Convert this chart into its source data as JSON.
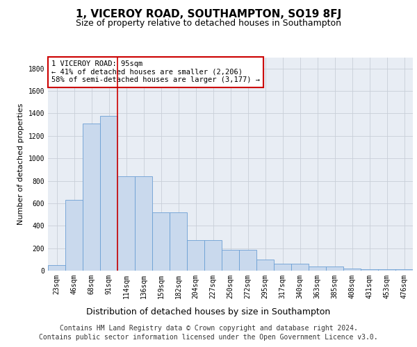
{
  "title1": "1, VICEROY ROAD, SOUTHAMPTON, SO19 8FJ",
  "title2": "Size of property relative to detached houses in Southampton",
  "xlabel": "Distribution of detached houses by size in Southampton",
  "ylabel": "Number of detached properties",
  "categories": [
    "23sqm",
    "46sqm",
    "68sqm",
    "91sqm",
    "114sqm",
    "136sqm",
    "159sqm",
    "182sqm",
    "204sqm",
    "227sqm",
    "250sqm",
    "272sqm",
    "295sqm",
    "317sqm",
    "340sqm",
    "363sqm",
    "385sqm",
    "408sqm",
    "431sqm",
    "453sqm",
    "476sqm"
  ],
  "values": [
    50,
    630,
    1310,
    1380,
    840,
    840,
    520,
    520,
    270,
    270,
    185,
    185,
    100,
    60,
    60,
    35,
    35,
    20,
    15,
    12,
    10
  ],
  "bar_color": "#c9d9ed",
  "bar_edge_color": "#6b9fd4",
  "vline_pos": 3.5,
  "vline_color": "#cc0000",
  "annotation_text": "1 VICEROY ROAD: 95sqm\n← 41% of detached houses are smaller (2,206)\n58% of semi-detached houses are larger (3,177) →",
  "annotation_box_color": "white",
  "annotation_box_edge_color": "#cc0000",
  "ylim": [
    0,
    1900
  ],
  "yticks": [
    0,
    200,
    400,
    600,
    800,
    1000,
    1200,
    1400,
    1600,
    1800
  ],
  "grid_color": "#c8cfd8",
  "background_color": "#e8edf4",
  "footer1": "Contains HM Land Registry data © Crown copyright and database right 2024.",
  "footer2": "Contains public sector information licensed under the Open Government Licence v3.0.",
  "title1_fontsize": 11,
  "title2_fontsize": 9,
  "xlabel_fontsize": 9,
  "ylabel_fontsize": 8,
  "tick_fontsize": 7,
  "footer_fontsize": 7,
  "ann_fontsize": 7.5
}
